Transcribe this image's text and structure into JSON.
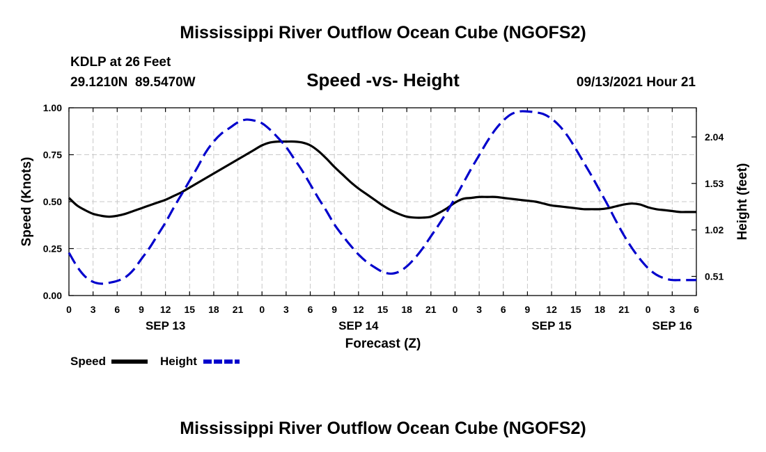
{
  "title_top": "Mississippi River Outflow Ocean Cube (NGOFS2)",
  "title_bottom": "Mississippi River Outflow Ocean Cube (NGOFS2)",
  "station": {
    "name": "KDLP at 26 Feet",
    "coords": "29.1210N  89.5470W"
  },
  "datetime": "09/13/2021 Hour 21",
  "chart_data": {
    "type": "line",
    "title": "Speed -vs- Height",
    "xlabel": "Forecast (Z)",
    "ylabel_left": "Speed (Knots)",
    "ylabel_right": "Height (feet)",
    "x_range_hours": [
      0,
      78
    ],
    "x_tick_labels": [
      "0",
      "3",
      "6",
      "9",
      "12",
      "15",
      "18",
      "21",
      "0",
      "3",
      "6",
      "9",
      "12",
      "15",
      "18",
      "21",
      "0",
      "3",
      "6",
      "9",
      "12",
      "15",
      "18",
      "21",
      "0",
      "3",
      "6"
    ],
    "date_labels": [
      {
        "label": "SEP 13",
        "hour": 12
      },
      {
        "label": "SEP 14",
        "hour": 36
      },
      {
        "label": "SEP 15",
        "hour": 60
      },
      {
        "label": "SEP 16",
        "hour": 75
      }
    ],
    "y_left": {
      "ylim": [
        0,
        1.0
      ],
      "ticks": [
        "0.00",
        "0.25",
        "0.50",
        "0.75",
        "1.00"
      ]
    },
    "y_right": {
      "ylim": [
        0.3,
        2.36
      ],
      "ticks": [
        "0.51",
        "1.02",
        "1.53",
        "2.04"
      ]
    },
    "grid": true,
    "series": [
      {
        "name": "Speed",
        "axis": "left",
        "color": "#000000",
        "style": "solid",
        "x": [
          0,
          1,
          2,
          3,
          4,
          5,
          6,
          7,
          8,
          9,
          10,
          11,
          12,
          13,
          14,
          15,
          16,
          17,
          18,
          19,
          20,
          21,
          22,
          23,
          24,
          25,
          26,
          27,
          28,
          29,
          30,
          31,
          32,
          33,
          34,
          35,
          36,
          37,
          38,
          39,
          40,
          41,
          42,
          43,
          44,
          45,
          46,
          47,
          48,
          49,
          50,
          51,
          52,
          53,
          54,
          55,
          56,
          57,
          58,
          59,
          60,
          61,
          62,
          63,
          64,
          65,
          66,
          67,
          68,
          69,
          70,
          71,
          72,
          73,
          74,
          75,
          76,
          77,
          78
        ],
        "values": [
          0.52,
          0.48,
          0.455,
          0.435,
          0.425,
          0.42,
          0.425,
          0.435,
          0.45,
          0.465,
          0.48,
          0.495,
          0.51,
          0.53,
          0.55,
          0.575,
          0.6,
          0.625,
          0.65,
          0.675,
          0.7,
          0.725,
          0.75,
          0.775,
          0.8,
          0.815,
          0.82,
          0.82,
          0.82,
          0.815,
          0.8,
          0.77,
          0.73,
          0.685,
          0.645,
          0.605,
          0.57,
          0.54,
          0.51,
          0.48,
          0.455,
          0.435,
          0.42,
          0.415,
          0.415,
          0.42,
          0.44,
          0.465,
          0.495,
          0.515,
          0.52,
          0.525,
          0.525,
          0.525,
          0.52,
          0.515,
          0.51,
          0.505,
          0.5,
          0.49,
          0.48,
          0.475,
          0.47,
          0.465,
          0.46,
          0.46,
          0.46,
          0.465,
          0.475,
          0.485,
          0.49,
          0.485,
          0.47,
          0.46,
          0.455,
          0.45,
          0.445,
          0.445,
          0.445
        ]
      },
      {
        "name": "Height",
        "axis": "right",
        "color": "#0000cc",
        "style": "dashed",
        "x": [
          0,
          1,
          2,
          3,
          4,
          5,
          6,
          7,
          8,
          9,
          10,
          11,
          12,
          13,
          14,
          15,
          16,
          17,
          18,
          19,
          20,
          21,
          22,
          23,
          24,
          25,
          26,
          27,
          28,
          29,
          30,
          31,
          32,
          33,
          34,
          35,
          36,
          37,
          38,
          39,
          40,
          41,
          42,
          43,
          44,
          45,
          46,
          47,
          48,
          49,
          50,
          51,
          52,
          53,
          54,
          55,
          56,
          57,
          58,
          59,
          60,
          61,
          62,
          63,
          64,
          65,
          66,
          67,
          68,
          69,
          70,
          71,
          72,
          73,
          74,
          75,
          76,
          77,
          78
        ],
        "values": [
          0.77,
          0.62,
          0.51,
          0.45,
          0.43,
          0.44,
          0.46,
          0.5,
          0.58,
          0.7,
          0.82,
          0.96,
          1.1,
          1.26,
          1.41,
          1.56,
          1.71,
          1.87,
          1.99,
          2.08,
          2.14,
          2.2,
          2.23,
          2.22,
          2.19,
          2.12,
          2.03,
          1.93,
          1.8,
          1.67,
          1.52,
          1.37,
          1.23,
          1.08,
          0.96,
          0.85,
          0.75,
          0.67,
          0.61,
          0.56,
          0.54,
          0.56,
          0.62,
          0.71,
          0.82,
          0.95,
          1.08,
          1.22,
          1.37,
          1.53,
          1.69,
          1.84,
          1.99,
          2.12,
          2.22,
          2.29,
          2.32,
          2.32,
          2.31,
          2.29,
          2.24,
          2.16,
          2.05,
          1.91,
          1.76,
          1.61,
          1.45,
          1.29,
          1.12,
          0.96,
          0.82,
          0.7,
          0.6,
          0.53,
          0.49,
          0.47,
          0.47,
          0.47,
          0.47
        ]
      }
    ],
    "legend": [
      {
        "label": "Speed",
        "color": "#000000",
        "style": "solid"
      },
      {
        "label": "Height",
        "color": "#0000cc",
        "style": "dashed"
      }
    ],
    "legend_position": "bottom-left"
  }
}
